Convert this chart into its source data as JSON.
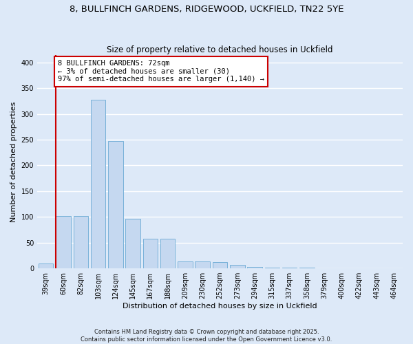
{
  "title1": "8, BULLFINCH GARDENS, RIDGEWOOD, UCKFIELD, TN22 5YE",
  "title2": "Size of property relative to detached houses in Uckfield",
  "xlabel": "Distribution of detached houses by size in Uckfield",
  "ylabel": "Number of detached properties",
  "categories": [
    "39sqm",
    "60sqm",
    "82sqm",
    "103sqm",
    "124sqm",
    "145sqm",
    "167sqm",
    "188sqm",
    "209sqm",
    "230sqm",
    "252sqm",
    "273sqm",
    "294sqm",
    "315sqm",
    "337sqm",
    "358sqm",
    "379sqm",
    "400sqm",
    "422sqm",
    "443sqm",
    "464sqm"
  ],
  "values": [
    10,
    102,
    102,
    327,
    247,
    97,
    58,
    58,
    14,
    14,
    12,
    7,
    3,
    2,
    1,
    1,
    0,
    0,
    0,
    0,
    0
  ],
  "bar_color": "#c5d8f0",
  "bar_edge_color": "#6aaad4",
  "annotation_title": "8 BULLFINCH GARDENS: 72sqm",
  "annotation_line1": "← 3% of detached houses are smaller (30)",
  "annotation_line2": "97% of semi-detached houses are larger (1,140) →",
  "annotation_box_color": "#ffffff",
  "annotation_box_edge": "#cc0000",
  "vline_bar_index": 1,
  "ylim": [
    0,
    415
  ],
  "yticks": [
    0,
    50,
    100,
    150,
    200,
    250,
    300,
    350,
    400
  ],
  "footer1": "Contains HM Land Registry data © Crown copyright and database right 2025.",
  "footer2": "Contains public sector information licensed under the Open Government Licence v3.0.",
  "bg_color": "#dde9f8",
  "plot_bg_color": "#dde9f8",
  "grid_color": "#ffffff",
  "title_fontsize": 9.5,
  "subtitle_fontsize": 8.5,
  "axis_label_fontsize": 8,
  "tick_fontsize": 7,
  "annotation_fontsize": 7.5,
  "footer_fontsize": 6
}
